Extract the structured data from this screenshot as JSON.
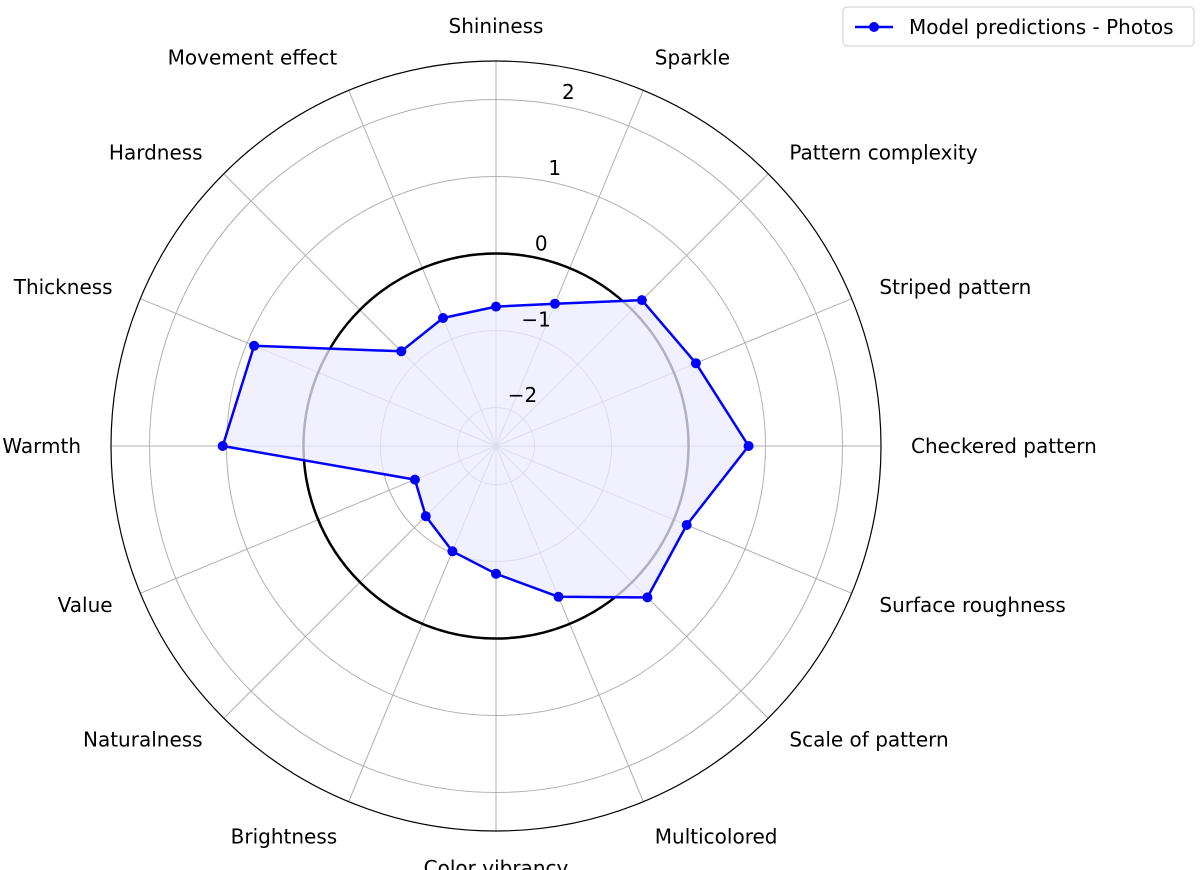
{
  "chart_data": {
    "type": "radar",
    "categories": [
      "Shininess",
      "Sparkle",
      "Pattern complexity",
      "Striped pattern",
      "Checkered pattern",
      "Surface roughness",
      "Scale of pattern",
      "Multicolored",
      "Color vibrancy",
      "Brightness",
      "Naturalness",
      "Value",
      "Warmth",
      "Thickness",
      "Hardness",
      "Movement effect"
    ],
    "series": [
      {
        "name": "Model predictions - Photos",
        "values": [
          -0.69,
          -0.5,
          0.18,
          0.31,
          0.78,
          0.18,
          0.28,
          -0.38,
          -0.84,
          -1.02,
          -1.21,
          -1.36,
          1.05,
          0.9,
          -0.76,
          -0.7
        ]
      }
    ],
    "rlim": [
      -2.5,
      2.5
    ],
    "rticks": [
      -2,
      -1,
      0,
      1,
      2
    ],
    "rtick_labels": [
      "−2",
      "−1",
      "0",
      "1",
      "2"
    ],
    "reference_circle_value": 0,
    "grid": true,
    "legend_position": "top-right",
    "colors": {
      "series": "#0000ff",
      "fill": "#ebebff",
      "grid": "#b0b0b0",
      "reference": "#000000"
    }
  }
}
